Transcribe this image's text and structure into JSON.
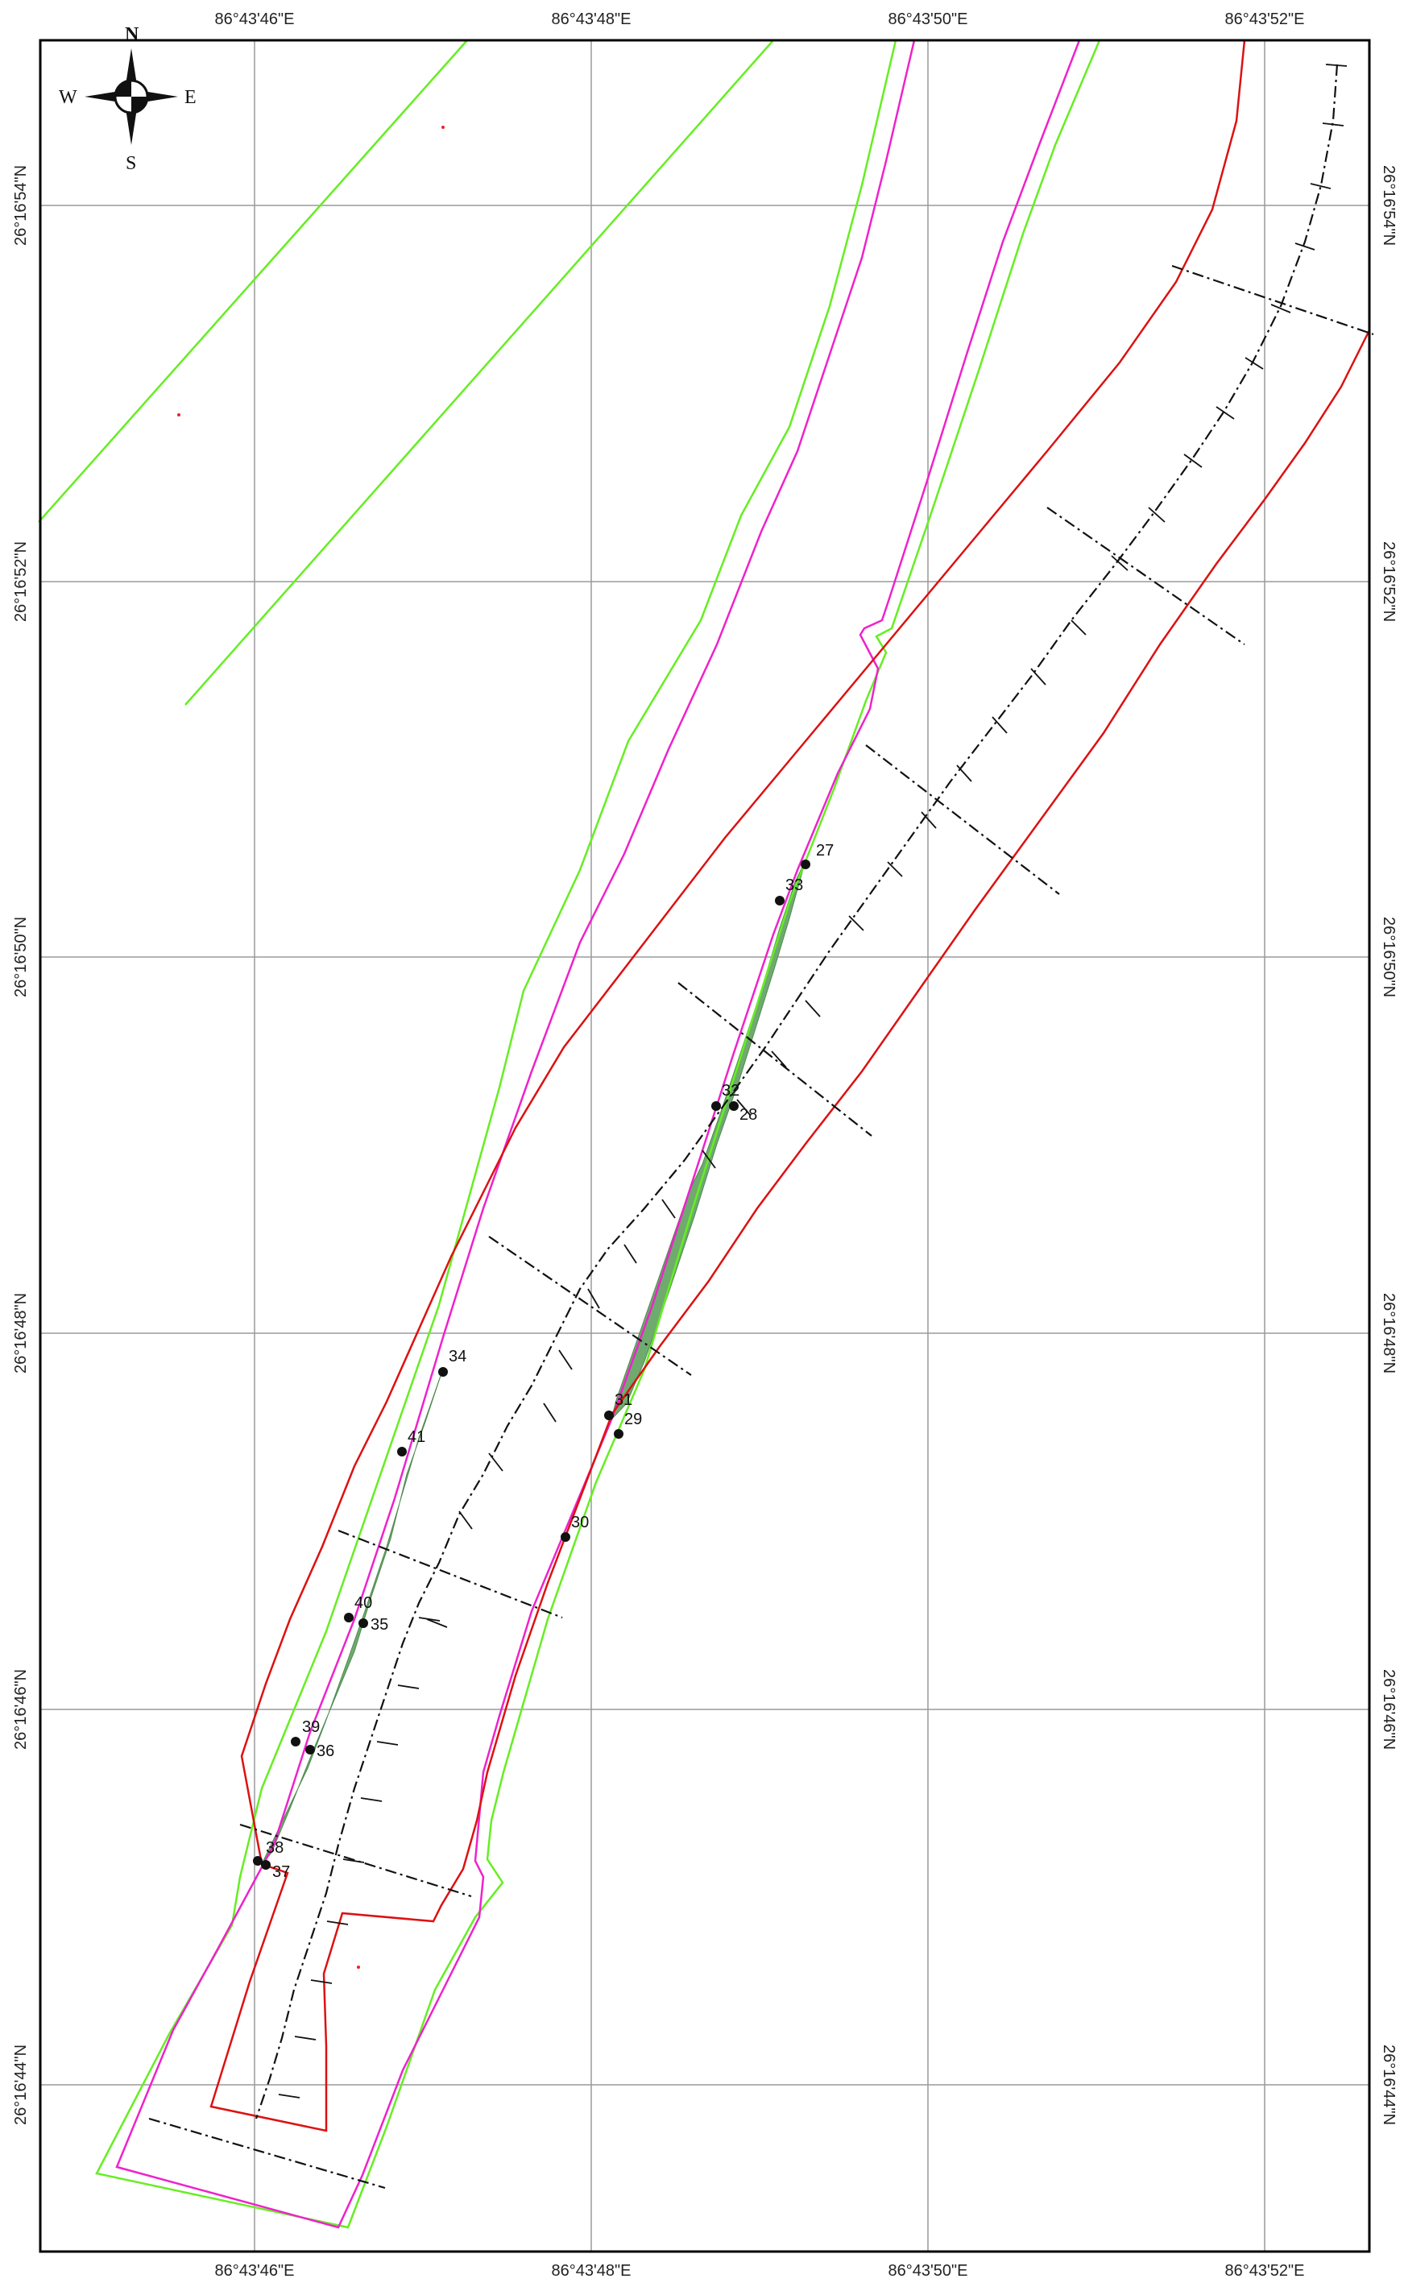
{
  "map": {
    "longitude_labels": [
      "86°43'46\"E",
      "86°43'48\"E",
      "86°43'50\"E",
      "86°43'52\"E"
    ],
    "latitude_labels": [
      "26°16'54\"N",
      "26°16'52\"N",
      "26°16'50\"N",
      "26°16'48\"N",
      "26°16'46\"N",
      "26°16'44\"N"
    ],
    "compass": {
      "north": "N",
      "south": "S",
      "east": "E",
      "west": "W"
    },
    "colors": {
      "green_line": "#66ee22",
      "magenta_line": "#ee22cc",
      "red_line": "#dd1111",
      "eroded_fill": "#6faa6f",
      "centerline": "#111111",
      "grid": "#9a9a9a",
      "frame": "#000000"
    },
    "points": [
      {
        "id": "27",
        "label": "27"
      },
      {
        "id": "28",
        "label": "28"
      },
      {
        "id": "29",
        "label": "29"
      },
      {
        "id": "30",
        "label": "30"
      },
      {
        "id": "31",
        "label": "31"
      },
      {
        "id": "32",
        "label": "32"
      },
      {
        "id": "33",
        "label": "33"
      },
      {
        "id": "34",
        "label": "34"
      },
      {
        "id": "35",
        "label": "35"
      },
      {
        "id": "36",
        "label": "36"
      },
      {
        "id": "37",
        "label": "37"
      },
      {
        "id": "38",
        "label": "38"
      },
      {
        "id": "39",
        "label": "39"
      },
      {
        "id": "40",
        "label": "40"
      },
      {
        "id": "41",
        "label": "41"
      }
    ]
  }
}
